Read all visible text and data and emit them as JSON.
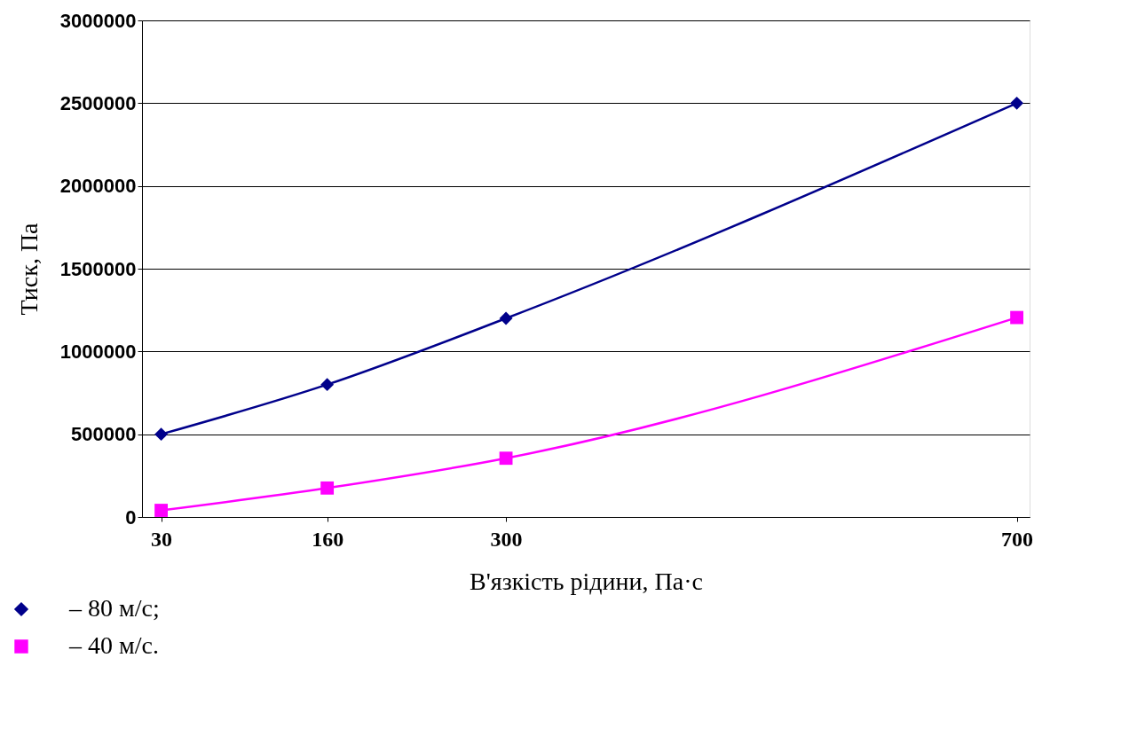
{
  "chart_data": {
    "type": "line",
    "xlabel": "В'язкість рідини, Па·с",
    "ylabel": "Тиск, Па",
    "x": [
      30,
      160,
      300,
      700
    ],
    "xlim": [
      15,
      710
    ],
    "xticks": [
      30,
      160,
      300,
      700
    ],
    "ylim": [
      0,
      3000000
    ],
    "yticks": [
      0,
      500000,
      1000000,
      1500000,
      2000000,
      2500000,
      3000000
    ],
    "series": [
      {
        "name": "– 80 м/с;",
        "color": "#00008b",
        "marker": "diamond",
        "values": [
          500000,
          800000,
          1200000,
          2500000
        ]
      },
      {
        "name": "– 40 м/с.",
        "color": "#ff00ff",
        "marker": "square",
        "values": [
          40000,
          175000,
          355000,
          1205000
        ]
      }
    ],
    "grid": "y",
    "legend": "bottom left",
    "line_style": "solid"
  }
}
